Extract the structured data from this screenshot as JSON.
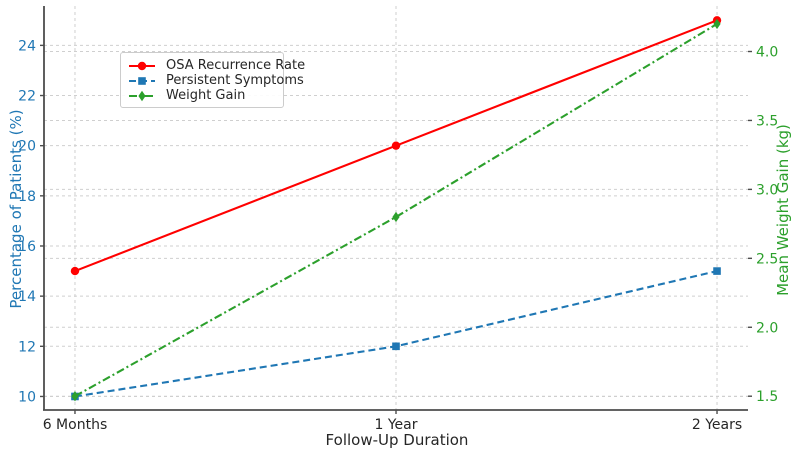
{
  "chart_data": {
    "type": "line",
    "title": "",
    "x": {
      "label": "Follow-Up Duration",
      "categories": [
        "6 Months",
        "1 Year",
        "2 Years"
      ],
      "tick_color": "#262626"
    },
    "y_left": {
      "label": "Percentage of Patients (%)",
      "color": "#1f77b4",
      "ticks": [
        10,
        12,
        14,
        16,
        18,
        20,
        22,
        24
      ],
      "range": [
        9.46,
        25.57
      ]
    },
    "y_right": {
      "label": "Mean Weight Gain (kg)",
      "color": "#2ca02c",
      "ticks": [
        "1.5",
        "2.0",
        "2.5",
        "3.0",
        "3.5",
        "4.0"
      ],
      "range": [
        1.4,
        4.33
      ]
    },
    "series": [
      {
        "name": "OSA Recurrence Rate",
        "axis": "left",
        "color": "#ff0000",
        "line_style": "solid",
        "marker": "circle",
        "values": [
          15,
          20,
          25
        ]
      },
      {
        "name": "Persistent Symptoms",
        "axis": "left",
        "color": "#1f77b4",
        "line_style": "dashed",
        "marker": "square",
        "values": [
          10,
          12,
          15
        ]
      },
      {
        "name": "Weight Gain",
        "axis": "right",
        "color": "#2ca02c",
        "line_style": "dashdot",
        "marker": "diamond",
        "values": [
          1.5,
          2.8,
          4.2
        ]
      }
    ],
    "legend": {
      "position": "upper left"
    },
    "grid": true,
    "colors": {
      "gridline": "#cfcfcf",
      "spine": "#4d4d4d",
      "background": "#ffffff"
    }
  }
}
